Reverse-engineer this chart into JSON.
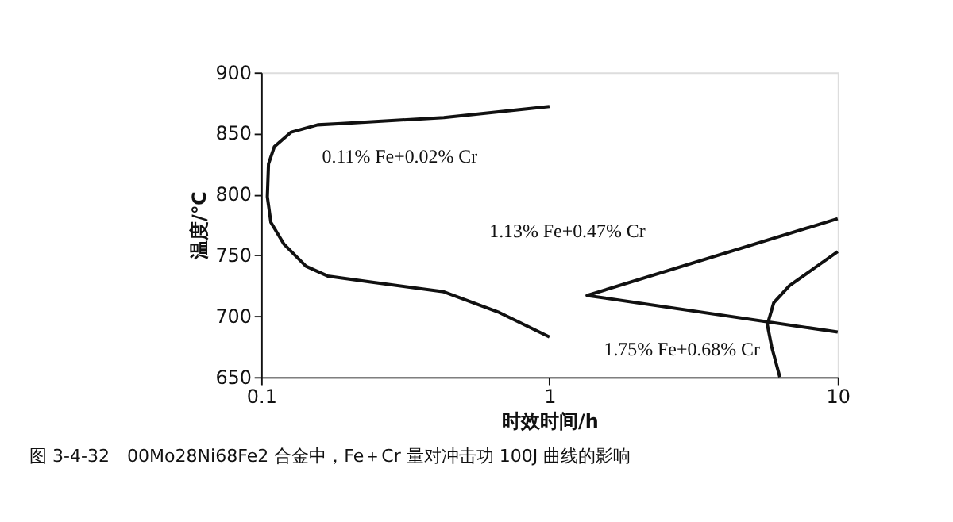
{
  "chart_data": {
    "type": "line",
    "xlabel": "时效时间/h",
    "ylabel": "温度/℃",
    "log": "x",
    "xlim": [
      0.1,
      10
    ],
    "xticks": [
      0.1,
      1,
      10
    ],
    "ylim": [
      650,
      900
    ],
    "yticks": [
      650,
      700,
      750,
      800,
      850,
      900
    ],
    "grid": false,
    "line_style": "solid",
    "marker": "none",
    "series": [
      {
        "name": "0.11% Fe+0.02% Cr",
        "color": "#111111",
        "x": [
          1.0,
          0.43,
          0.19,
          0.157,
          0.127,
          0.111,
          0.106,
          0.105,
          0.108,
          0.12,
          0.143,
          0.17,
          0.24,
          0.43,
          0.67,
          1.0
        ],
        "values": [
          872,
          863,
          858,
          857,
          851,
          839,
          825,
          798,
          777,
          759,
          741,
          733,
          728,
          720,
          703,
          683
        ]
      },
      {
        "name": "1.13% Fe+0.47% Cr",
        "color": "#111111",
        "x": [
          10,
          1.35,
          10
        ],
        "values": [
          780,
          717,
          687
        ]
      },
      {
        "name": "1.75% Fe+0.68% Cr",
        "color": "#111111",
        "x": [
          10,
          6.8,
          6.0,
          5.7,
          5.9,
          6.3
        ],
        "values": [
          753,
          725,
          711,
          693,
          675,
          650
        ]
      }
    ],
    "annotations": [
      "图 3-4-32　00Mo28Ni68Fe2 合金中，Fe＋Cr 量对冲击功 100J 曲线的影响"
    ]
  }
}
